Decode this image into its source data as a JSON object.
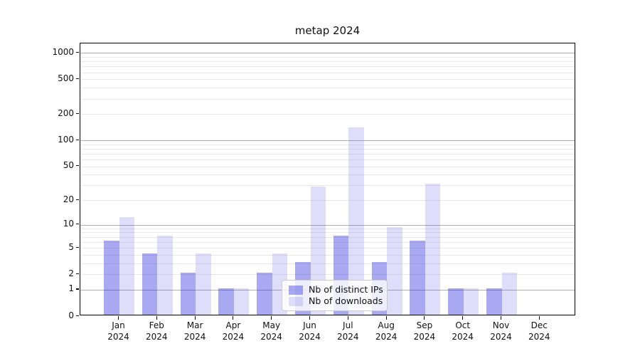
{
  "chart_data": {
    "type": "bar",
    "title": "metap 2024",
    "categories": [
      "Jan",
      "Feb",
      "Mar",
      "Apr",
      "May",
      "Jun",
      "Jul",
      "Aug",
      "Sep",
      "Oct",
      "Nov",
      "Dec"
    ],
    "category_year_label": "2024",
    "series": [
      {
        "name": "Nb of distinct IPs",
        "color": "rgba(40,40,220,0.40)",
        "apparent_color": "#a9a9f1",
        "values": [
          6,
          4,
          2,
          1,
          2,
          3,
          7,
          3,
          6,
          1,
          1,
          0
        ]
      },
      {
        "name": "Nb of downloads",
        "color": "rgba(70,70,228,0.18)",
        "apparent_color": "#dedef9",
        "values": [
          12,
          7,
          4,
          1,
          4,
          28,
          135,
          9,
          30,
          1,
          2,
          0
        ]
      }
    ],
    "yscale": "log1p",
    "ylim": [
      0,
      1281
    ],
    "yticks": [
      0,
      1,
      2,
      5,
      10,
      20,
      50,
      100,
      200,
      500,
      1000
    ],
    "grid": "horizontal major + log minor gridlines",
    "legend_position": "inside plot, lower center",
    "grid_major_color": "#b0b0b0",
    "grid_minor_color": "#e9e9e9"
  }
}
